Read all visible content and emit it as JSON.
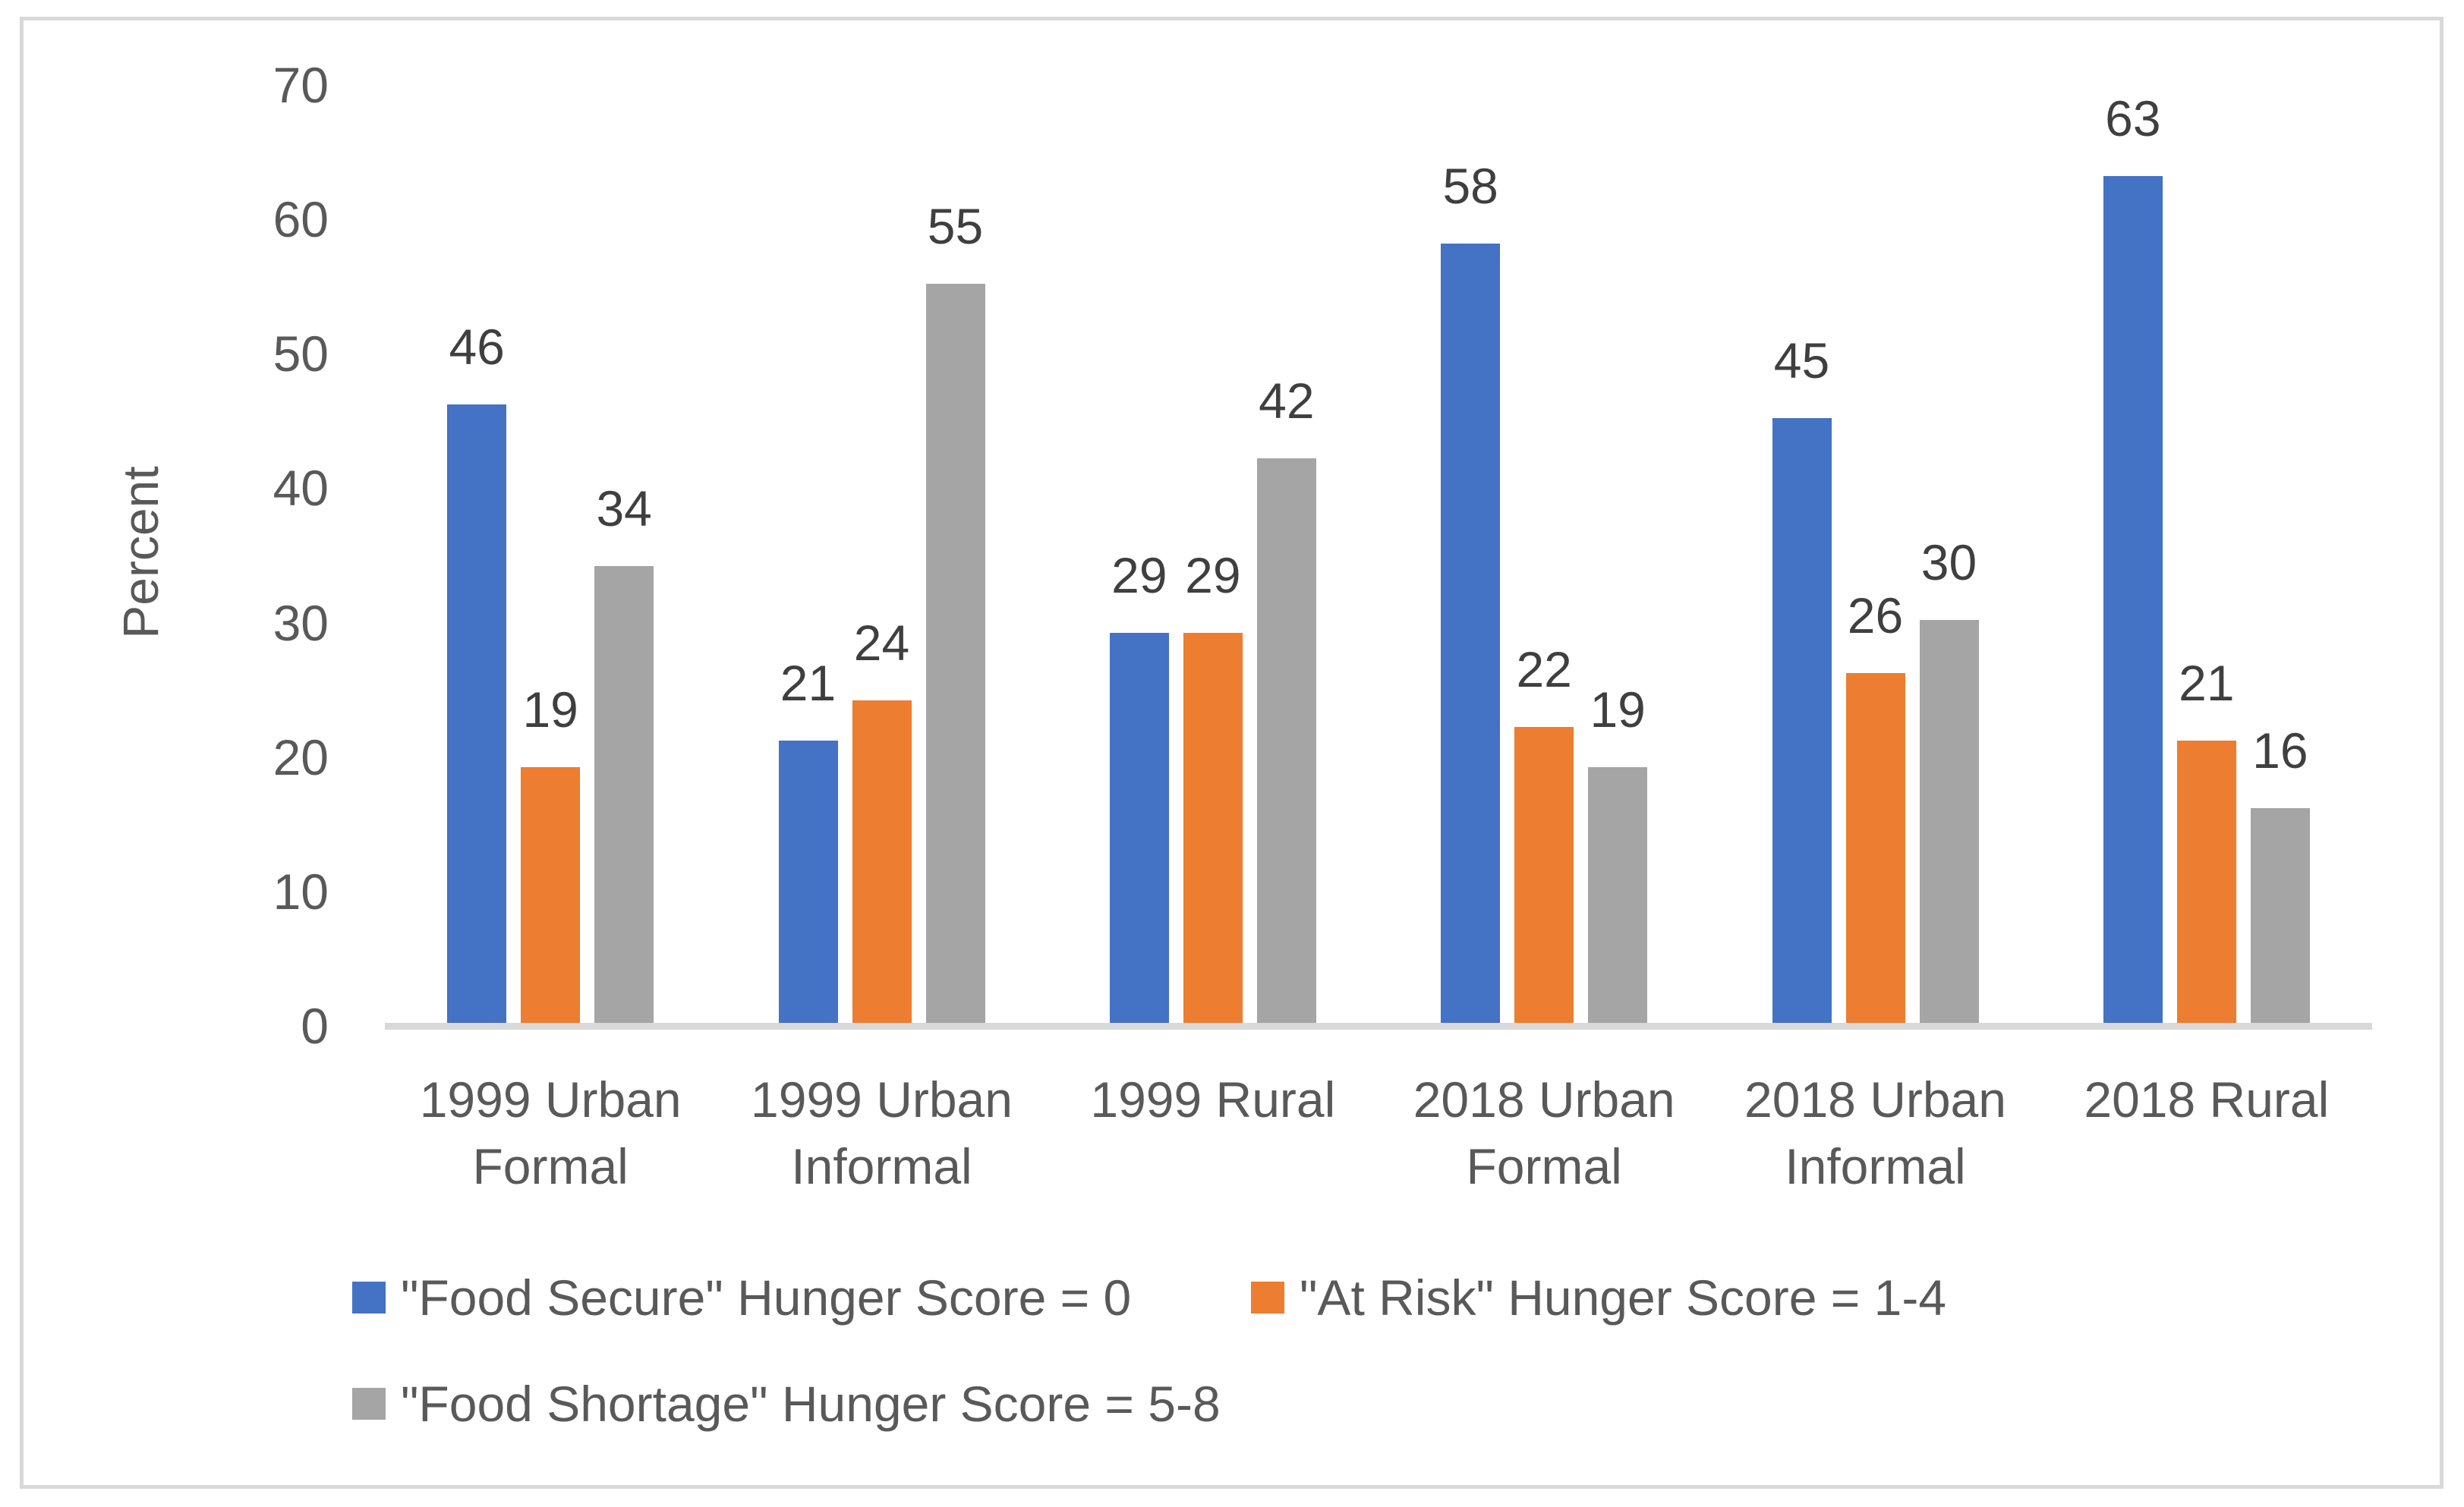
{
  "chart_data": {
    "type": "bar",
    "title": "",
    "xlabel": "",
    "ylabel": "Percent",
    "ylim": [
      0,
      70
    ],
    "yticks": [
      0,
      10,
      20,
      30,
      40,
      50,
      60,
      70
    ],
    "grid": false,
    "legend_position": "bottom",
    "categories": [
      "1999 Urban\nFormal",
      "1999 Urban\nInformal",
      "1999 Rural",
      "2018 Urban\nFormal",
      "2018 Urban\nInformal",
      "2018 Rural"
    ],
    "series": [
      {
        "name": "\"Food Secure\" Hunger Score = 0",
        "color": "#4472C4",
        "values": [
          46,
          21,
          29,
          58,
          45,
          63
        ]
      },
      {
        "name": "\"At Risk\" Hunger Score = 1-4",
        "color": "#ED7D31",
        "values": [
          19,
          24,
          29,
          22,
          26,
          21
        ]
      },
      {
        "name": "\"Food Shortage\" Hunger Score = 5-8",
        "color": "#A5A5A5",
        "values": [
          34,
          55,
          42,
          19,
          30,
          16
        ]
      }
    ]
  },
  "colors": {
    "axis_line": "#D9D9D9",
    "frame_border": "#D9D9D9",
    "axis_text": "#595959",
    "data_label_text": "#3F3F3F"
  }
}
